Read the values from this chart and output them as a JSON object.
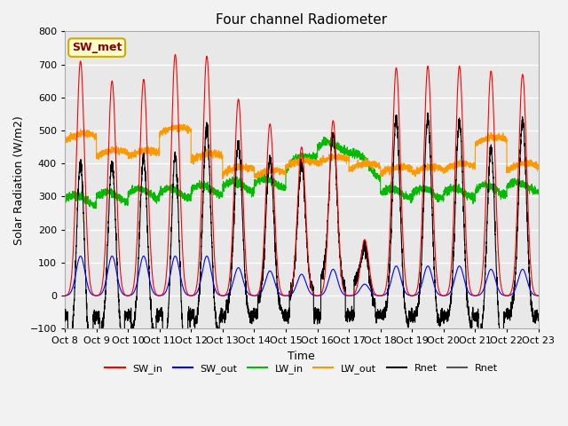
{
  "title": "Four channel Radiometer",
  "xlabel": "Time",
  "ylabel": "Solar Radiation (W/m2)",
  "annotation": "SW_met",
  "ylim": [
    -100,
    800
  ],
  "yticks": [
    -100,
    0,
    100,
    200,
    300,
    400,
    500,
    600,
    700,
    800
  ],
  "xtick_labels": [
    "Oct 8",
    "Oct 9",
    "Oct 10",
    "Oct 11",
    "Oct 12",
    "Oct 13",
    "Oct 14",
    "Oct 15",
    "Oct 16",
    "Oct 17",
    "Oct 18",
    "Oct 19",
    "Oct 20",
    "Oct 21",
    "Oct 22",
    "Oct 23"
  ],
  "num_days": 15,
  "colors": {
    "SW_in": "#ff0000",
    "SW_out": "#0000ff",
    "LW_in": "#00bb00",
    "LW_out": "#ff9900",
    "Rnet": "#000000",
    "Rnet2": "#555555"
  },
  "legend_entries": [
    "SW_in",
    "SW_out",
    "LW_in",
    "LW_out",
    "Rnet",
    "Rnet"
  ],
  "legend_colors": [
    "#ff0000",
    "#0000ff",
    "#00bb00",
    "#ff9900",
    "#000000",
    "#555555"
  ],
  "ax_background": "#e8e8e8",
  "grid_color": "#ffffff",
  "points_per_day": 288,
  "seed": 42,
  "sw_peaks": [
    710,
    650,
    655,
    730,
    725,
    595,
    520,
    450,
    530,
    170,
    690,
    695,
    695,
    680,
    670
  ],
  "sw_out_peaks": [
    120,
    120,
    120,
    120,
    120,
    85,
    75,
    65,
    80,
    35,
    90,
    90,
    90,
    80,
    80
  ],
  "lw_in_base": [
    290,
    300,
    310,
    310,
    320,
    330,
    340,
    380,
    390,
    370,
    310,
    310,
    310,
    320,
    330
  ],
  "lw_out_base": [
    470,
    420,
    420,
    490,
    410,
    370,
    360,
    390,
    400,
    380,
    370,
    370,
    380,
    460,
    380
  ],
  "night_rnet": -60,
  "figsize": [
    6.4,
    4.8
  ],
  "dpi": 100
}
